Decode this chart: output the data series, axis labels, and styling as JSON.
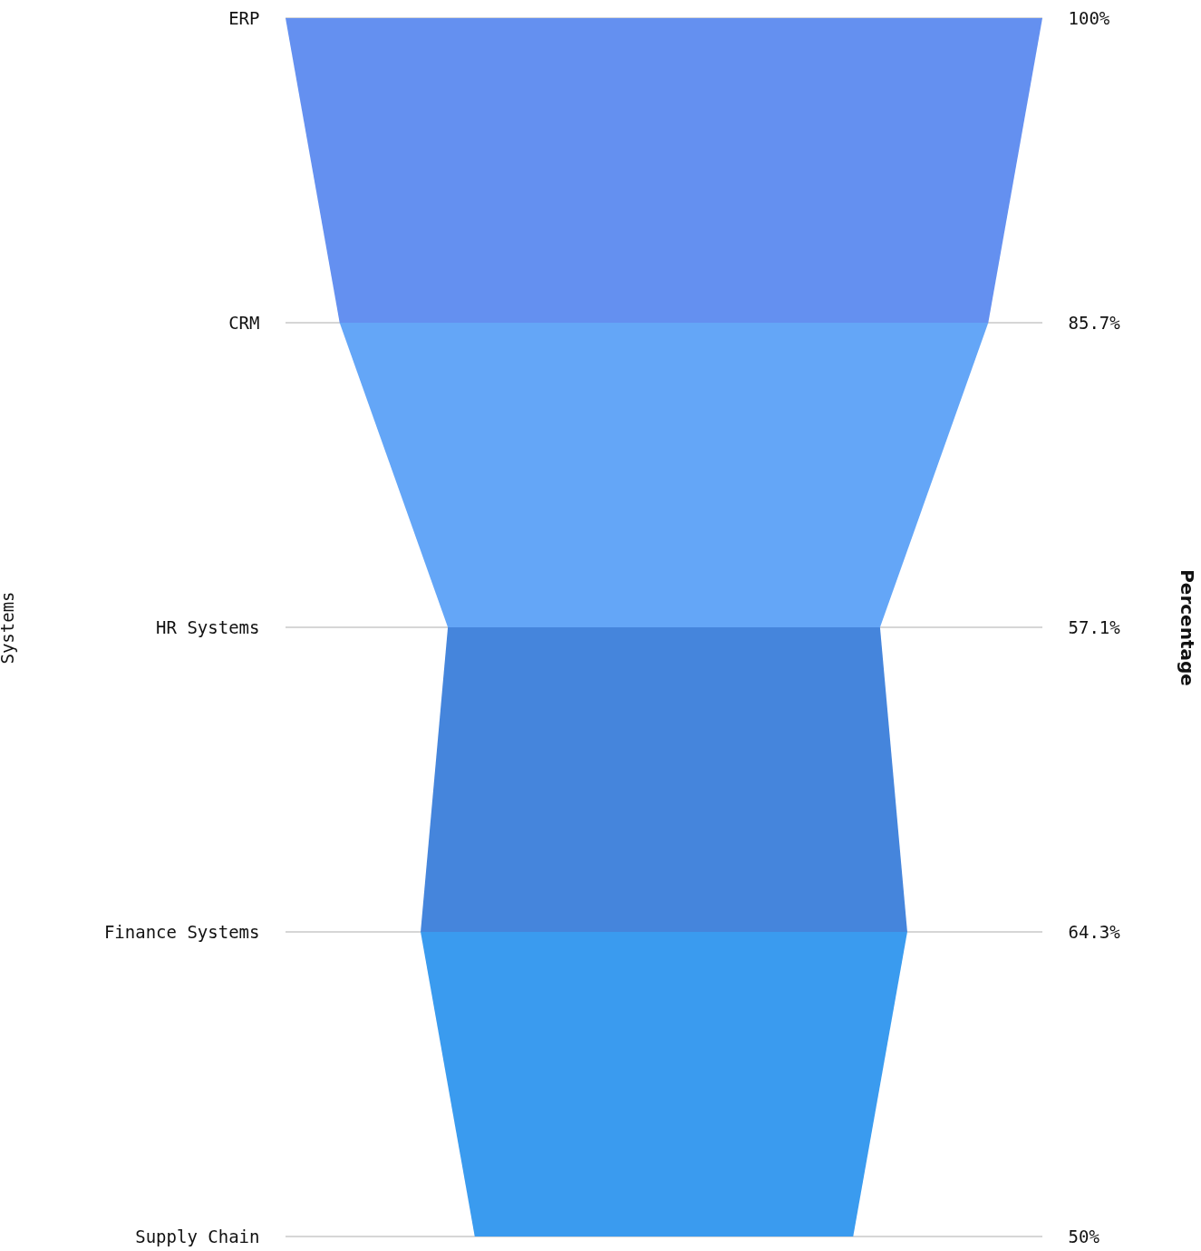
{
  "chart_data": {
    "type": "other",
    "ylabel": "Systems",
    "y2label": "Percentage",
    "categories": [
      "ERP",
      "CRM",
      "HR Systems",
      "Finance Systems",
      "Supply Chain"
    ],
    "values": [
      100,
      85.7,
      57.1,
      64.3,
      50
    ],
    "value_labels": [
      "100%",
      "85.7%",
      "57.1%",
      "64.3%",
      "50%"
    ],
    "colors": [
      "#6490f0",
      "#64a6f7",
      "#4585dc",
      "#3a9bef",
      "#3a9bef"
    ]
  }
}
